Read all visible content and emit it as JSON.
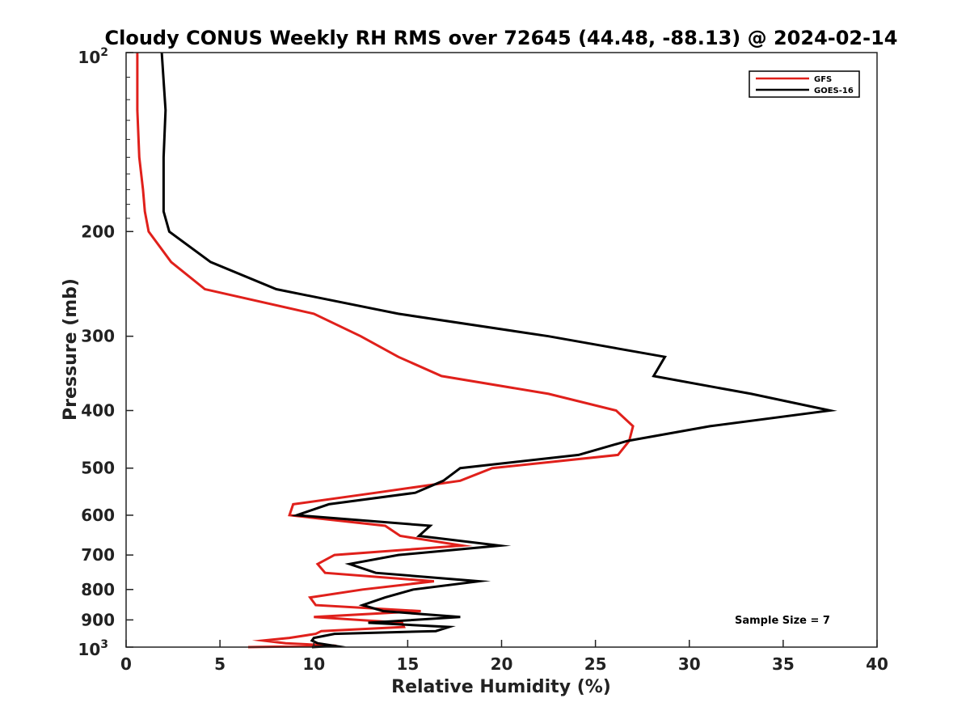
{
  "chart_data": {
    "type": "line",
    "title": "Cloudy CONUS Weekly RH RMS over 72645 (44.48, -88.13) @ 2024-02-14",
    "xlabel": "Relative Humidity (%)",
    "ylabel": "Pressure (mb)",
    "xlim": [
      0,
      40
    ],
    "ylim": [
      1000,
      100
    ],
    "y_scale": "log",
    "x_ticks": [
      0,
      5,
      10,
      15,
      20,
      25,
      30,
      35,
      40
    ],
    "x_tick_labels": [
      "0",
      "5",
      "10",
      "15",
      "20",
      "25",
      "30",
      "35",
      "40"
    ],
    "y_ticks": [
      200,
      300,
      400,
      500,
      600,
      700,
      800,
      900
    ],
    "y_tick_labels": [
      "200",
      "300",
      "400",
      "500",
      "600",
      "700",
      "800",
      "900"
    ],
    "y_tick_top": {
      "base": "10",
      "exp": "2"
    },
    "y_tick_bottom": {
      "base": "10",
      "exp": "3"
    },
    "grid": false,
    "legend_position": "top-right",
    "annotation": "Sample Size = 7",
    "series": [
      {
        "name": "GFS",
        "color": "#e0201b",
        "points": [
          [
            0.6,
            100
          ],
          [
            0.6,
            125
          ],
          [
            0.7,
            150
          ],
          [
            0.9,
            170
          ],
          [
            1.0,
            185
          ],
          [
            1.2,
            200
          ],
          [
            2.4,
            225
          ],
          [
            4.2,
            250
          ],
          [
            10.0,
            275
          ],
          [
            12.5,
            300
          ],
          [
            14.5,
            325
          ],
          [
            16.8,
            350
          ],
          [
            22.5,
            375
          ],
          [
            26.1,
            400
          ],
          [
            27.0,
            425
          ],
          [
            26.8,
            450
          ],
          [
            26.2,
            475
          ],
          [
            19.5,
            500
          ],
          [
            17.8,
            525
          ],
          [
            13.3,
            550
          ],
          [
            8.9,
            575
          ],
          [
            8.7,
            600
          ],
          [
            13.8,
            625
          ],
          [
            14.6,
            650
          ],
          [
            17.9,
            675
          ],
          [
            11.1,
            700
          ],
          [
            10.2,
            725
          ],
          [
            10.6,
            750
          ],
          [
            16.4,
            775
          ],
          [
            12.6,
            800
          ],
          [
            9.8,
            825
          ],
          [
            10.1,
            850
          ],
          [
            15.7,
            870
          ],
          [
            10.0,
            890
          ],
          [
            14.7,
            910
          ],
          [
            14.8,
            925
          ],
          [
            10.4,
            940
          ],
          [
            10.1,
            950
          ],
          [
            8.7,
            965
          ],
          [
            7.3,
            975
          ],
          [
            8.5,
            985
          ],
          [
            11.2,
            995
          ],
          [
            6.5,
            1000
          ]
        ]
      },
      {
        "name": "GOES-16",
        "color": "#000000",
        "points": [
          [
            1.9,
            100
          ],
          [
            2.1,
            125
          ],
          [
            2.0,
            150
          ],
          [
            2.0,
            170
          ],
          [
            2.0,
            185
          ],
          [
            2.3,
            200
          ],
          [
            4.5,
            225
          ],
          [
            8.0,
            250
          ],
          [
            14.5,
            275
          ],
          [
            22.5,
            300
          ],
          [
            28.7,
            325
          ],
          [
            28.1,
            350
          ],
          [
            33.3,
            375
          ],
          [
            37.5,
            400
          ],
          [
            31.1,
            425
          ],
          [
            26.7,
            450
          ],
          [
            24.1,
            475
          ],
          [
            17.8,
            500
          ],
          [
            16.9,
            525
          ],
          [
            15.4,
            550
          ],
          [
            10.8,
            575
          ],
          [
            9.1,
            600
          ],
          [
            16.2,
            625
          ],
          [
            15.6,
            650
          ],
          [
            19.9,
            675
          ],
          [
            14.5,
            700
          ],
          [
            11.9,
            725
          ],
          [
            13.3,
            750
          ],
          [
            18.8,
            775
          ],
          [
            15.3,
            800
          ],
          [
            13.8,
            825
          ],
          [
            12.6,
            850
          ],
          [
            13.7,
            870
          ],
          [
            17.8,
            890
          ],
          [
            12.9,
            910
          ],
          [
            17.2,
            925
          ],
          [
            16.5,
            940
          ],
          [
            11.1,
            950
          ],
          [
            10.0,
            965
          ],
          [
            9.9,
            975
          ],
          [
            10.2,
            985
          ],
          [
            11.1,
            995
          ],
          [
            9.9,
            1000
          ]
        ]
      }
    ]
  }
}
